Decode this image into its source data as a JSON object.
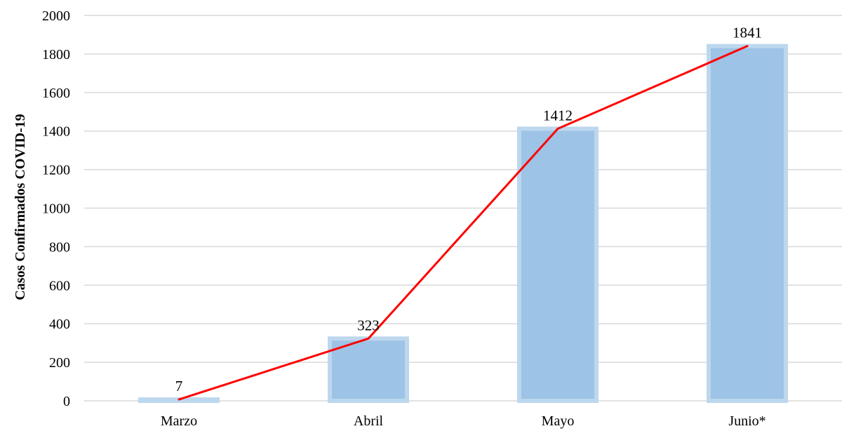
{
  "chart_data": {
    "type": "bar",
    "categories": [
      "Marzo",
      "Abril",
      "Mayo",
      "Junio*"
    ],
    "values": [
      7,
      323,
      1412,
      1841
    ],
    "data_labels": [
      "7",
      "323",
      "1412",
      "1841"
    ],
    "line_overlay": true,
    "title": "",
    "xlabel": "",
    "ylabel": "Casos Confirmados COVID-19",
    "ylim": [
      0,
      2000
    ],
    "yticks": [
      0,
      200,
      400,
      600,
      800,
      1000,
      1200,
      1400,
      1600,
      1800,
      2000
    ],
    "grid": true,
    "legend": "none",
    "colors": {
      "bar_fill": "#9dc3e6",
      "bar_border": "#bdd7ee",
      "line": "#ff0000",
      "grid": "#d9d9d9"
    }
  }
}
